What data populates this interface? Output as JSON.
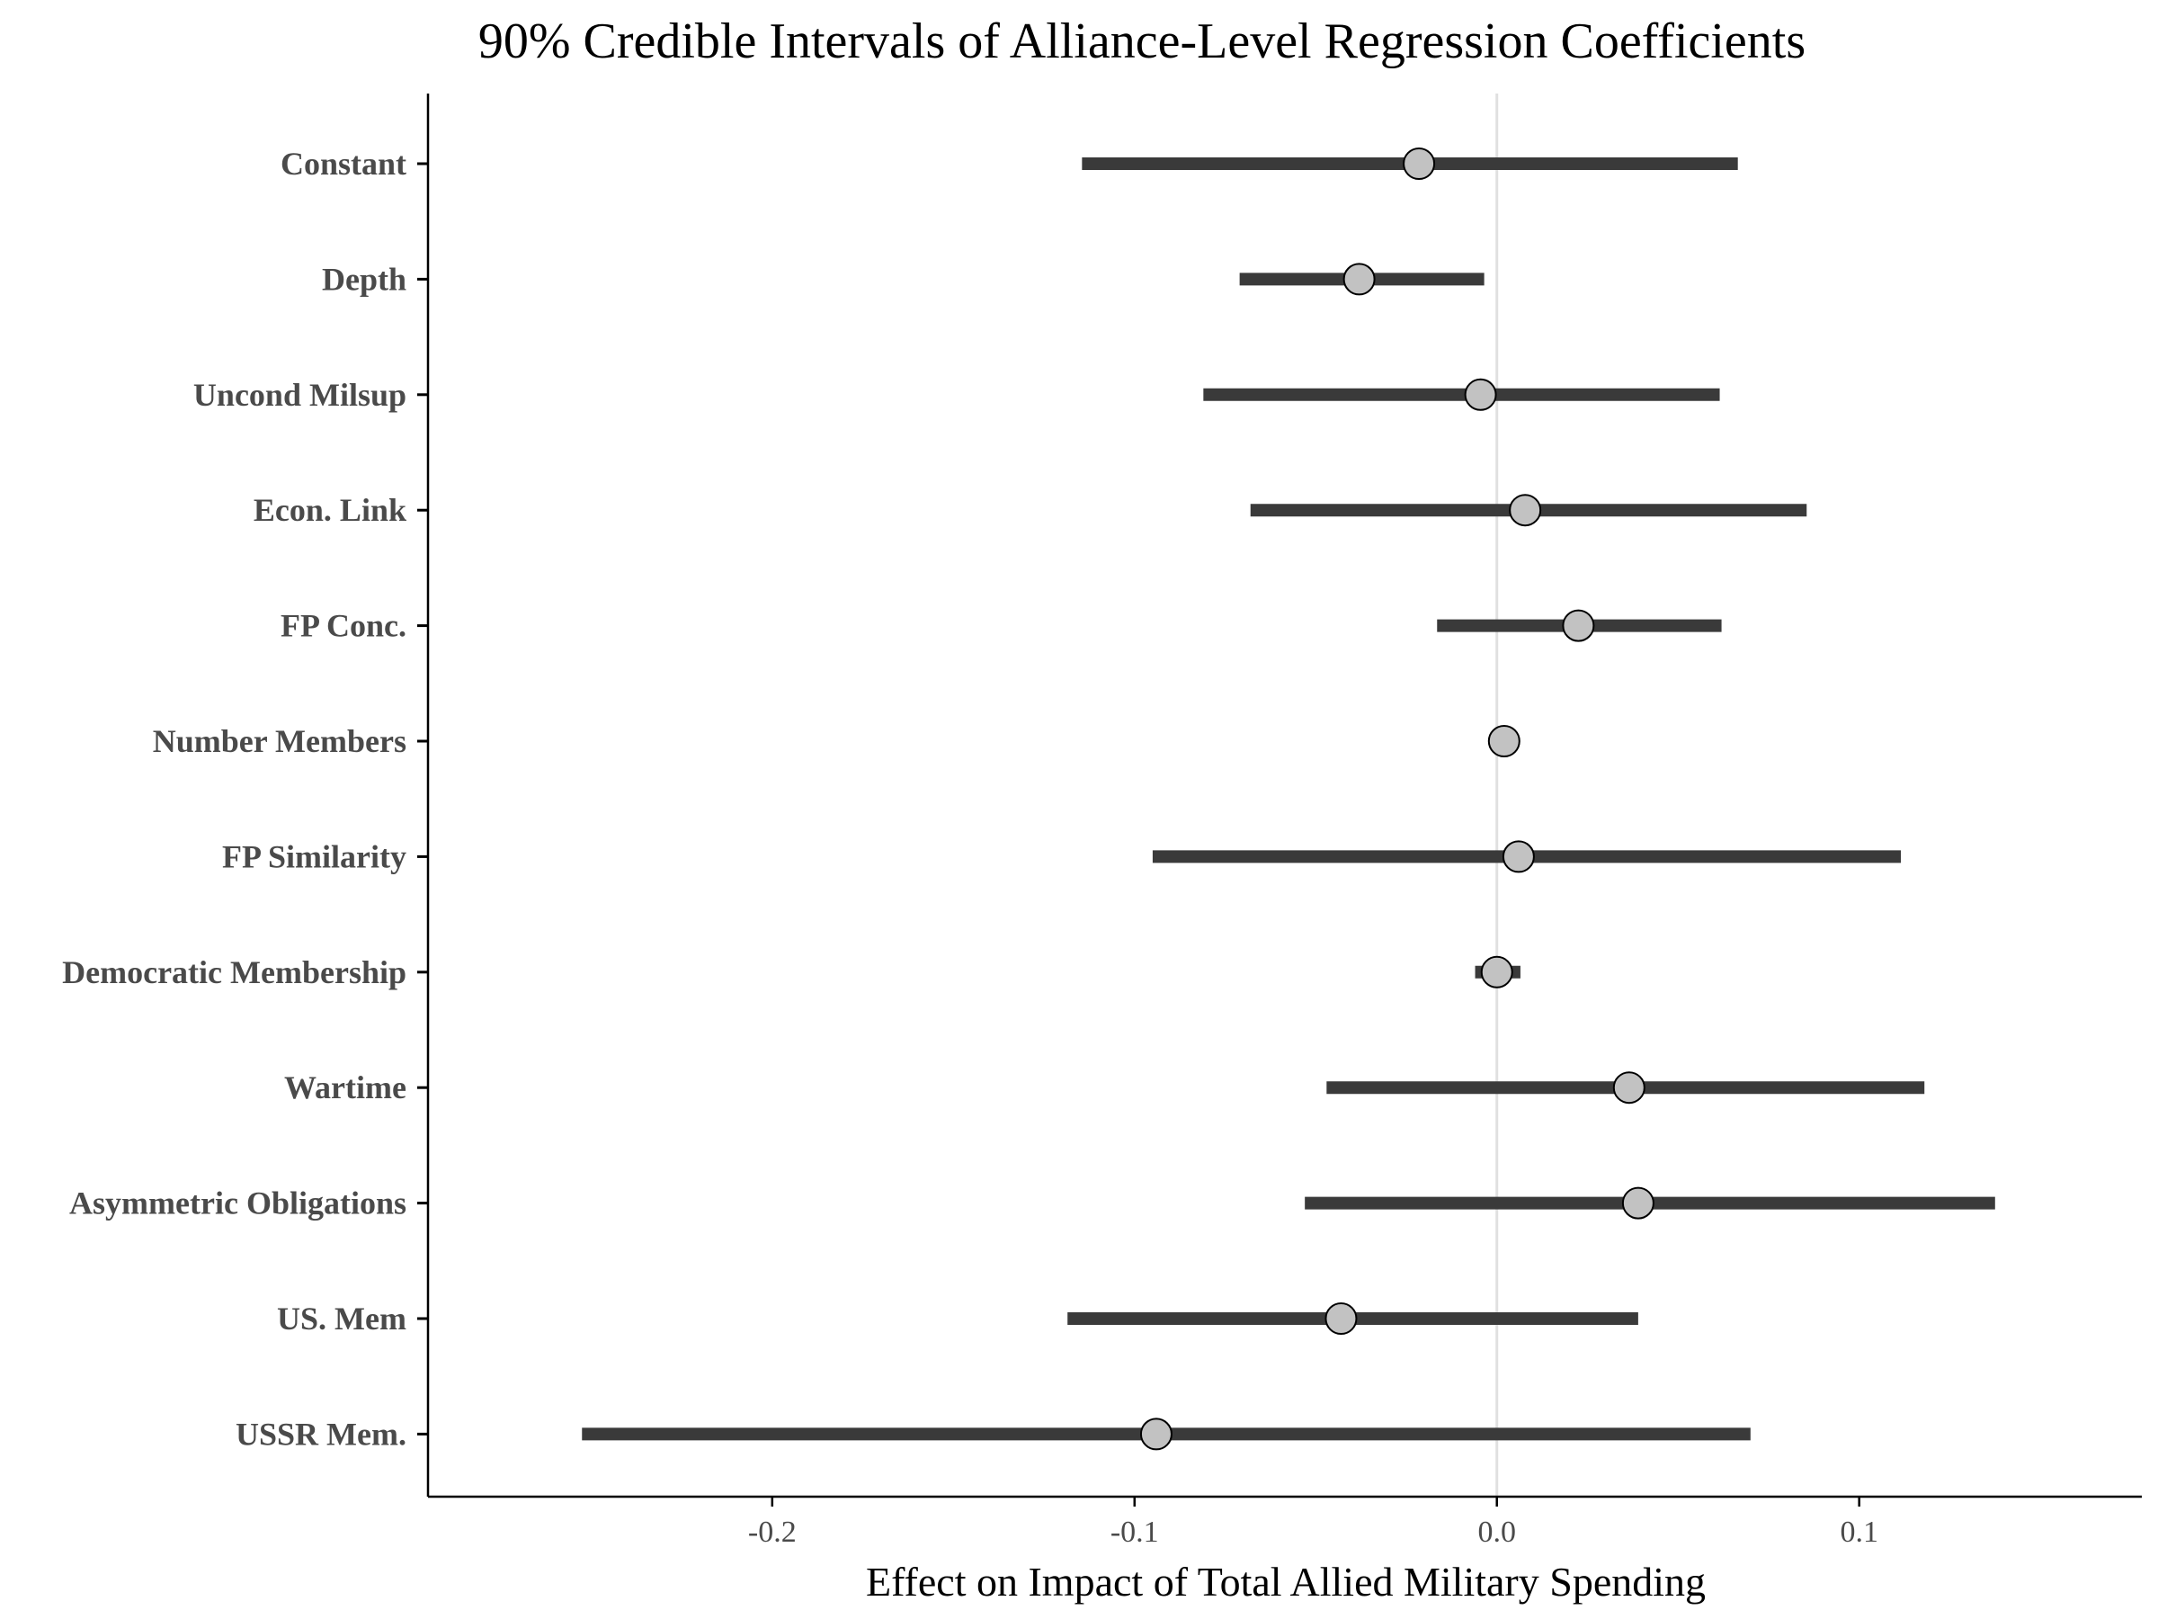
{
  "chart_data": {
    "type": "interval",
    "title": "90% Credible Intervals of Alliance-Level Regression Coefficients",
    "xlabel": "Effect on Impact of Total Allied Military Spending",
    "ylabel": "",
    "xlim": [
      -0.295,
      0.178
    ],
    "xticks": [
      -0.2,
      -0.1,
      0.0,
      0.1
    ],
    "xtick_labels": [
      "-0.2",
      "-0.1",
      "0.0",
      "0.1"
    ],
    "reference_line": 0.0,
    "grid": false,
    "legend": "none",
    "colors": {
      "interval": "#3a3a3a",
      "point_fill": "#c2c2c2",
      "point_stroke": "#000000",
      "reference_line": "#e0e0e0",
      "axis": "#000000",
      "tick_label": "#4a4a4a"
    },
    "categories": [
      "Constant",
      "Depth",
      "Uncond Milsup",
      "Econ. Link",
      "FP Conc.",
      "Number Members",
      "FP Similarity",
      "Democratic Membership",
      "Wartime",
      "Asymmetric Obligations",
      "US. Mem",
      "USSR Mem."
    ],
    "estimates": [
      -0.0215,
      -0.038,
      -0.0045,
      0.0078,
      0.0225,
      0.002,
      0.006,
      0.0,
      0.0365,
      0.039,
      -0.043,
      -0.094
    ],
    "lower": [
      -0.1145,
      -0.071,
      -0.081,
      -0.068,
      -0.0165,
      0.001,
      -0.095,
      -0.006,
      -0.047,
      -0.053,
      -0.1185,
      -0.2525
    ],
    "upper": [
      0.0665,
      -0.0035,
      0.0615,
      0.0855,
      0.062,
      0.003,
      0.1115,
      0.0065,
      0.118,
      0.1375,
      0.039,
      0.07
    ]
  }
}
